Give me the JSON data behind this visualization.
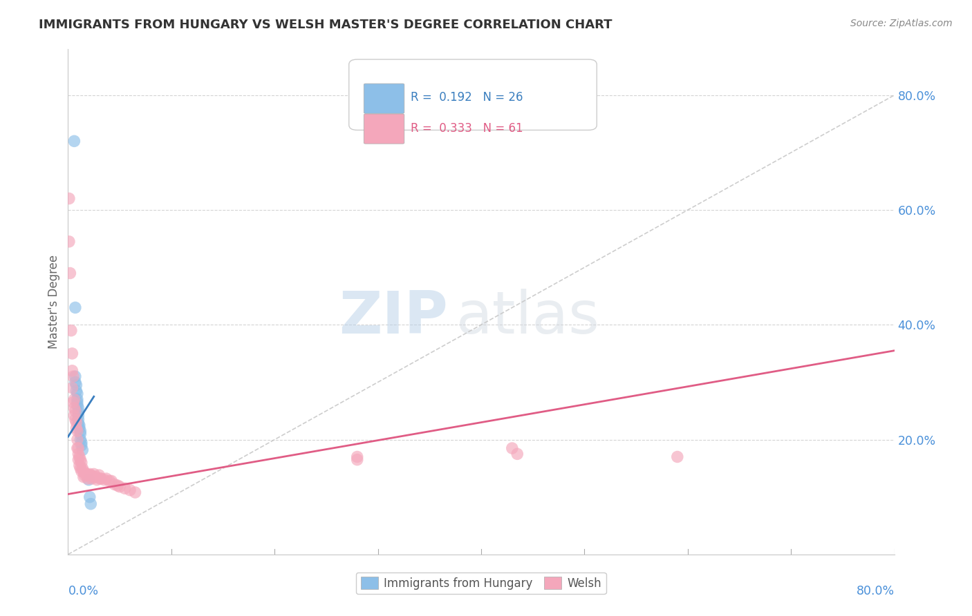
{
  "title": "IMMIGRANTS FROM HUNGARY VS WELSH MASTER'S DEGREE CORRELATION CHART",
  "source_text": "Source: ZipAtlas.com",
  "ylabel": "Master's Degree",
  "xlim": [
    0.0,
    0.8
  ],
  "ylim": [
    0.0,
    0.88
  ],
  "blue_color": "#8dbfe8",
  "pink_color": "#f4a7bb",
  "blue_line_color": "#3a7ebf",
  "pink_line_color": "#e05c85",
  "dashed_line_color": "#c8c8c8",
  "background_color": "#ffffff",
  "grid_color": "#d0d0d0",
  "title_color": "#333333",
  "source_color": "#888888",
  "axis_label_color": "#4a90d9",
  "watermark_zip": "ZIP",
  "watermark_atlas": "atlas",
  "watermark_color": "#dce8f0",
  "blue_scatter_x": [
    0.006,
    0.007,
    0.007,
    0.007,
    0.008,
    0.008,
    0.009,
    0.009,
    0.009,
    0.009,
    0.01,
    0.01,
    0.01,
    0.01,
    0.01,
    0.011,
    0.011,
    0.012,
    0.012,
    0.012,
    0.013,
    0.013,
    0.014,
    0.02,
    0.021,
    0.022
  ],
  "blue_scatter_y": [
    0.72,
    0.43,
    0.31,
    0.3,
    0.295,
    0.285,
    0.28,
    0.27,
    0.265,
    0.26,
    0.255,
    0.248,
    0.242,
    0.235,
    0.228,
    0.225,
    0.22,
    0.215,
    0.21,
    0.2,
    0.195,
    0.19,
    0.182,
    0.13,
    0.1,
    0.088
  ],
  "pink_scatter_x": [
    0.001,
    0.001,
    0.002,
    0.003,
    0.004,
    0.004,
    0.004,
    0.005,
    0.005,
    0.006,
    0.006,
    0.006,
    0.007,
    0.007,
    0.008,
    0.008,
    0.009,
    0.009,
    0.009,
    0.01,
    0.01,
    0.01,
    0.011,
    0.011,
    0.012,
    0.012,
    0.013,
    0.013,
    0.014,
    0.015,
    0.015,
    0.016,
    0.017,
    0.018,
    0.019,
    0.02,
    0.021,
    0.022,
    0.023,
    0.025,
    0.025,
    0.027,
    0.028,
    0.03,
    0.031,
    0.032,
    0.035,
    0.037,
    0.04,
    0.042,
    0.045,
    0.048,
    0.05,
    0.055,
    0.06,
    0.065,
    0.28,
    0.28,
    0.43,
    0.435,
    0.59
  ],
  "pink_scatter_y": [
    0.62,
    0.545,
    0.49,
    0.39,
    0.35,
    0.32,
    0.29,
    0.31,
    0.265,
    0.27,
    0.255,
    0.242,
    0.25,
    0.235,
    0.23,
    0.22,
    0.215,
    0.2,
    0.185,
    0.185,
    0.175,
    0.165,
    0.17,
    0.155,
    0.165,
    0.15,
    0.16,
    0.145,
    0.15,
    0.145,
    0.135,
    0.138,
    0.14,
    0.14,
    0.132,
    0.138,
    0.14,
    0.138,
    0.132,
    0.14,
    0.135,
    0.135,
    0.13,
    0.138,
    0.132,
    0.132,
    0.13,
    0.132,
    0.128,
    0.128,
    0.122,
    0.12,
    0.118,
    0.115,
    0.112,
    0.108,
    0.17,
    0.165,
    0.185,
    0.175,
    0.17
  ],
  "blue_line_x": [
    0.0,
    0.025
  ],
  "blue_line_y_start": 0.205,
  "blue_line_y_end": 0.275,
  "pink_line_x": [
    0.0,
    0.8
  ],
  "pink_line_y_start": 0.105,
  "pink_line_y_end": 0.355,
  "dash_line_x": [
    0.0,
    0.8
  ],
  "dash_line_y": [
    0.0,
    0.8
  ]
}
